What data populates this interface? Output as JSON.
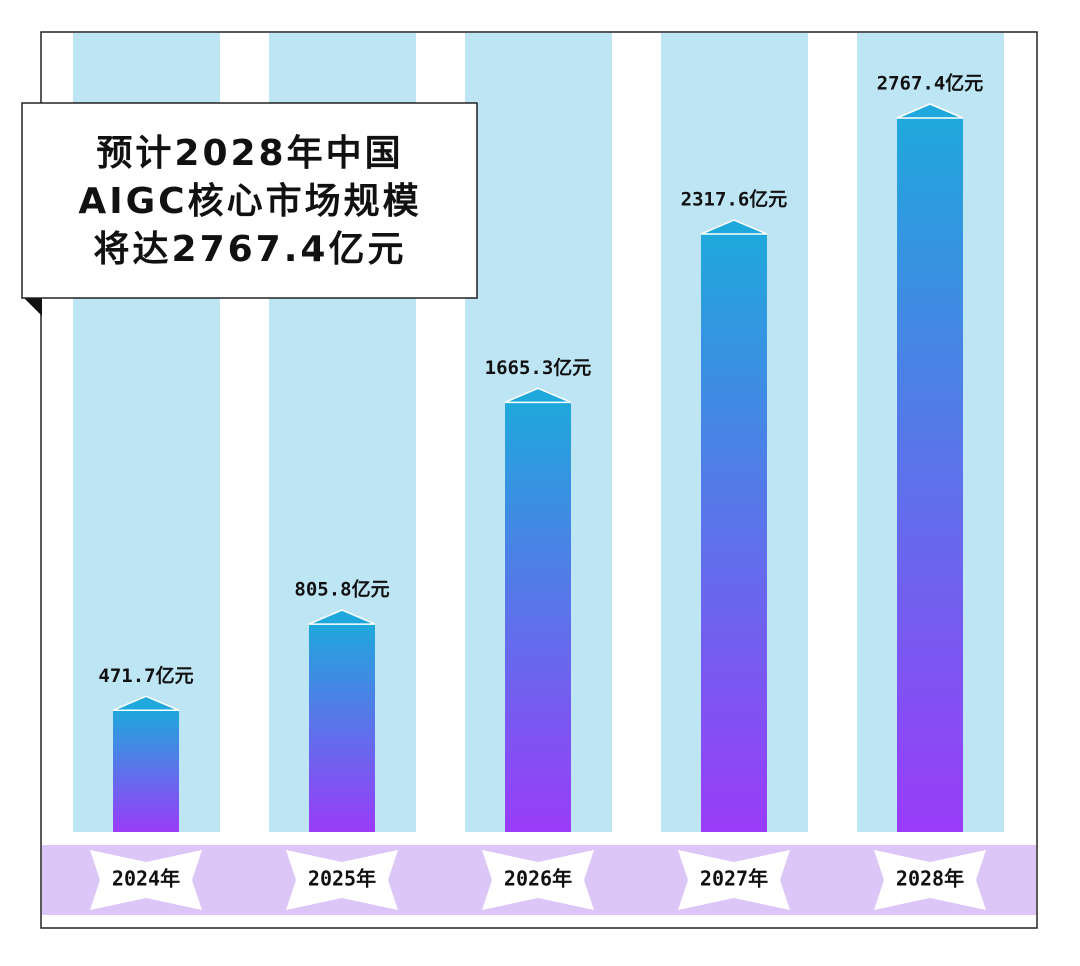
{
  "chart_data": {
    "type": "bar",
    "title_lines": [
      "预计2028年中国",
      "AIGC核心市场规模",
      "将达2767.4亿元"
    ],
    "categories": [
      "2024年",
      "2025年",
      "2026年",
      "2027年",
      "2028年"
    ],
    "values": [
      471.7,
      805.8,
      1665.3,
      2317.6,
      2767.4
    ],
    "value_labels": [
      "471.7亿元",
      "805.8亿元",
      "1665.3亿元",
      "2317.6亿元",
      "2767.4亿元"
    ],
    "color": [
      "#1fa8dc",
      "#9a3cf8"
    ]
  }
}
